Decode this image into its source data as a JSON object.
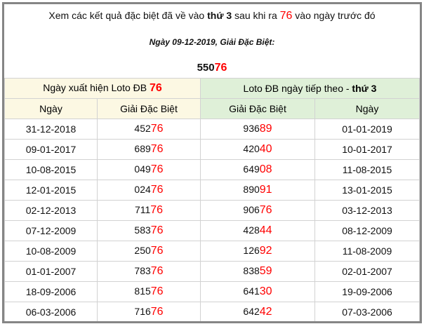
{
  "intro": {
    "pre": "Xem các kết quả đặc biệt đã về vào ",
    "weekday": "thứ 3",
    "mid": " sau khi ra ",
    "number": "76",
    "post": " vào ngày trước đó"
  },
  "date_line": "Ngày 09-12-2019, Giải Đặc Biệt:",
  "special": {
    "head": "550",
    "tail": "76"
  },
  "table": {
    "group_left": {
      "label": "Ngày xuất hiện Loto ĐB ",
      "number": "76"
    },
    "group_right": {
      "label": "Loto ĐB ngày tiếp theo - ",
      "weekday": "thứ 3"
    },
    "columns": [
      "Ngày",
      "Giải Đặc Biệt",
      "Giải Đặc Biệt",
      "Ngày"
    ],
    "rows": [
      {
        "date": "31-12-2018",
        "prize": {
          "head": "452",
          "tail": "76"
        },
        "next_prize": {
          "head": "936",
          "tail": "89"
        },
        "next_date": "01-01-2019"
      },
      {
        "date": "09-01-2017",
        "prize": {
          "head": "689",
          "tail": "76"
        },
        "next_prize": {
          "head": "420",
          "tail": "40"
        },
        "next_date": "10-01-2017"
      },
      {
        "date": "10-08-2015",
        "prize": {
          "head": "049",
          "tail": "76"
        },
        "next_prize": {
          "head": "649",
          "tail": "08"
        },
        "next_date": "11-08-2015"
      },
      {
        "date": "12-01-2015",
        "prize": {
          "head": "024",
          "tail": "76"
        },
        "next_prize": {
          "head": "890",
          "tail": "91"
        },
        "next_date": "13-01-2015"
      },
      {
        "date": "02-12-2013",
        "prize": {
          "head": "711",
          "tail": "76"
        },
        "next_prize": {
          "head": "906",
          "tail": "76"
        },
        "next_date": "03-12-2013"
      },
      {
        "date": "07-12-2009",
        "prize": {
          "head": "583",
          "tail": "76"
        },
        "next_prize": {
          "head": "428",
          "tail": "44"
        },
        "next_date": "08-12-2009"
      },
      {
        "date": "10-08-2009",
        "prize": {
          "head": "250",
          "tail": "76"
        },
        "next_prize": {
          "head": "126",
          "tail": "92"
        },
        "next_date": "11-08-2009"
      },
      {
        "date": "01-01-2007",
        "prize": {
          "head": "783",
          "tail": "76"
        },
        "next_prize": {
          "head": "838",
          "tail": "59"
        },
        "next_date": "02-01-2007"
      },
      {
        "date": "18-09-2006",
        "prize": {
          "head": "815",
          "tail": "76"
        },
        "next_prize": {
          "head": "641",
          "tail": "30"
        },
        "next_date": "19-09-2006"
      },
      {
        "date": "06-03-2006",
        "prize": {
          "head": "716",
          "tail": "76"
        },
        "next_prize": {
          "head": "642",
          "tail": "42"
        },
        "next_date": "07-03-2006"
      }
    ]
  },
  "colors": {
    "accent": "#ff0000",
    "left_header_bg": "#fcf8e3",
    "right_header_bg": "#dff0d8",
    "border": "#858585"
  }
}
